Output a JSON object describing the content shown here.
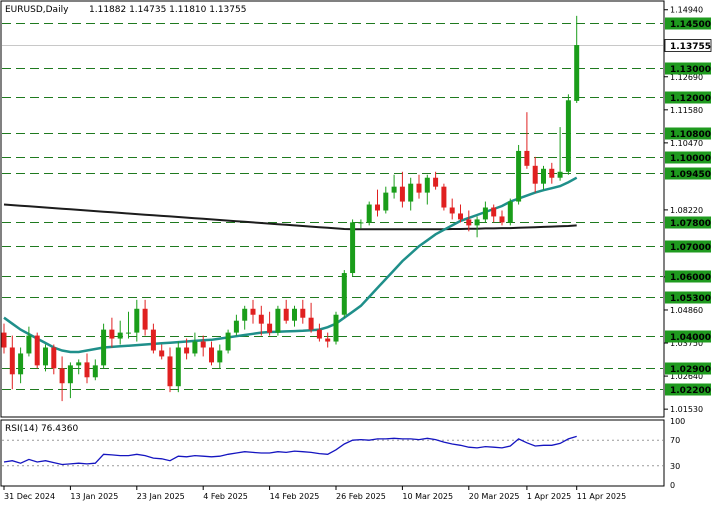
{
  "header": {
    "symbol": "EURUSD,Daily",
    "ohlc": "1.11882 1.14735 1.11810 1.13755"
  },
  "price_axis": {
    "ticks": [
      "1.14940",
      "1.12690",
      "1.11580",
      "1.10470",
      "1.08220",
      "1.05970",
      "1.04860",
      "1.03750",
      "1.02640",
      "1.01530"
    ]
  },
  "levels": [
    "1.14500",
    "1.13000",
    "1.12000",
    "1.10800",
    "1.10000",
    "1.09450",
    "1.07800",
    "1.07000",
    "1.06000",
    "1.05300",
    "1.04000",
    "1.02900",
    "1.02200"
  ],
  "current_price": "1.13755",
  "rsi": {
    "label": "RSI(14) 76.4360",
    "ticks": [
      "100",
      "70",
      "30",
      "0"
    ],
    "levels": [
      70,
      30
    ]
  },
  "x_axis": {
    "labels": [
      "31 Dec 2024",
      "13 Jan 2025",
      "23 Jan 2025",
      "4 Feb 2025",
      "14 Feb 2025",
      "26 Feb 2025",
      "10 Mar 2025",
      "20 Mar 2025",
      "1 Apr 2025",
      "11 Apr 2025"
    ]
  },
  "colors": {
    "bull": "#1a9d1a",
    "bear": "#e02020",
    "level_line": "#1f7a1f",
    "ma_fast": "#1f8f8a",
    "ma_slow": "#1c1c1c",
    "rsi_line": "#1515c0",
    "tag_fill": "#1f9a1f",
    "current_tag_fill": "#ffffff"
  },
  "chart_data": {
    "type": "candlestick",
    "ohlc": [
      [
        1.041,
        1.044,
        1.034,
        1.036
      ],
      [
        1.036,
        1.04,
        1.022,
        1.027
      ],
      [
        1.027,
        1.036,
        1.024,
        1.034
      ],
      [
        1.034,
        1.043,
        1.033,
        1.04
      ],
      [
        1.04,
        1.041,
        1.029,
        1.03
      ],
      [
        1.03,
        1.037,
        1.028,
        1.036
      ],
      [
        1.036,
        1.037,
        1.027,
        1.029
      ],
      [
        1.029,
        1.033,
        1.018,
        1.024
      ],
      [
        1.024,
        1.031,
        1.019,
        1.03
      ],
      [
        1.03,
        1.032,
        1.027,
        1.031
      ],
      [
        1.031,
        1.034,
        1.024,
        1.026
      ],
      [
        1.026,
        1.032,
        1.025,
        1.03
      ],
      [
        1.03,
        1.044,
        1.029,
        1.042
      ],
      [
        1.042,
        1.046,
        1.036,
        1.039
      ],
      [
        1.039,
        1.045,
        1.037,
        1.041
      ],
      [
        1.041,
        1.048,
        1.039,
        1.041
      ],
      [
        1.041,
        1.052,
        1.038,
        1.049
      ],
      [
        1.049,
        1.052,
        1.04,
        1.042
      ],
      [
        1.042,
        1.044,
        1.034,
        1.035
      ],
      [
        1.035,
        1.037,
        1.032,
        1.033
      ],
      [
        1.033,
        1.036,
        1.021,
        1.023
      ],
      [
        1.023,
        1.038,
        1.021,
        1.036
      ],
      [
        1.036,
        1.039,
        1.032,
        1.034
      ],
      [
        1.034,
        1.041,
        1.033,
        1.038
      ],
      [
        1.038,
        1.04,
        1.033,
        1.036
      ],
      [
        1.036,
        1.038,
        1.03,
        1.031
      ],
      [
        1.031,
        1.037,
        1.029,
        1.035
      ],
      [
        1.035,
        1.042,
        1.034,
        1.041
      ],
      [
        1.041,
        1.047,
        1.04,
        1.045
      ],
      [
        1.045,
        1.05,
        1.042,
        1.049
      ],
      [
        1.049,
        1.052,
        1.044,
        1.047
      ],
      [
        1.047,
        1.05,
        1.04,
        1.044
      ],
      [
        1.044,
        1.048,
        1.04,
        1.041
      ],
      [
        1.041,
        1.05,
        1.04,
        1.049
      ],
      [
        1.049,
        1.052,
        1.044,
        1.045
      ],
      [
        1.045,
        1.05,
        1.043,
        1.049
      ],
      [
        1.049,
        1.052,
        1.044,
        1.046
      ],
      [
        1.046,
        1.051,
        1.041,
        1.042
      ],
      [
        1.042,
        1.044,
        1.038,
        1.039
      ],
      [
        1.039,
        1.041,
        1.036,
        1.038
      ],
      [
        1.038,
        1.048,
        1.037,
        1.047
      ],
      [
        1.047,
        1.062,
        1.046,
        1.061
      ],
      [
        1.061,
        1.079,
        1.06,
        1.078
      ],
      [
        1.078,
        1.079,
        1.076,
        1.078
      ],
      [
        1.078,
        1.085,
        1.077,
        1.084
      ],
      [
        1.084,
        1.089,
        1.08,
        1.082
      ],
      [
        1.082,
        1.09,
        1.081,
        1.088
      ],
      [
        1.088,
        1.094,
        1.086,
        1.09
      ],
      [
        1.09,
        1.095,
        1.083,
        1.085
      ],
      [
        1.085,
        1.093,
        1.082,
        1.091
      ],
      [
        1.091,
        1.094,
        1.086,
        1.088
      ],
      [
        1.088,
        1.094,
        1.084,
        1.093
      ],
      [
        1.093,
        1.095,
        1.089,
        1.09
      ],
      [
        1.09,
        1.091,
        1.082,
        1.083
      ],
      [
        1.083,
        1.086,
        1.079,
        1.081
      ],
      [
        1.081,
        1.084,
        1.078,
        1.079
      ],
      [
        1.079,
        1.082,
        1.075,
        1.077
      ],
      [
        1.077,
        1.08,
        1.073,
        1.079
      ],
      [
        1.079,
        1.085,
        1.078,
        1.083
      ],
      [
        1.083,
        1.084,
        1.078,
        1.08
      ],
      [
        1.08,
        1.082,
        1.077,
        1.078
      ],
      [
        1.078,
        1.086,
        1.077,
        1.085
      ],
      [
        1.085,
        1.104,
        1.084,
        1.102
      ],
      [
        1.102,
        1.115,
        1.096,
        1.097
      ],
      [
        1.097,
        1.1,
        1.088,
        1.091
      ],
      [
        1.091,
        1.097,
        1.089,
        1.096
      ],
      [
        1.096,
        1.098,
        1.091,
        1.093
      ],
      [
        1.093,
        1.11,
        1.092,
        1.095
      ],
      [
        1.095,
        1.121,
        1.094,
        1.119
      ],
      [
        1.1188,
        1.14735,
        1.1181,
        1.13755
      ]
    ],
    "ma_fast": [
      1.046,
      1.044,
      1.042,
      1.0405,
      1.039,
      1.0375,
      1.036,
      1.035,
      1.0345,
      1.0345,
      1.035,
      1.0355,
      1.036,
      1.0362,
      1.0364,
      1.0366,
      1.0368,
      1.037,
      1.0372,
      1.0374,
      1.0376,
      1.0378,
      1.038,
      1.0382,
      1.0384,
      1.0386,
      1.039,
      1.0394,
      1.0398,
      1.0402,
      1.0406,
      1.041,
      1.0412,
      1.0413,
      1.0414,
      1.0415,
      1.0416,
      1.0418,
      1.042,
      1.0428,
      1.044,
      1.046,
      1.048,
      1.05,
      1.053,
      1.056,
      1.059,
      1.062,
      1.065,
      1.0675,
      1.07,
      1.072,
      1.074,
      1.0755,
      1.077,
      1.0785,
      1.0795,
      1.0805,
      1.0815,
      1.0825,
      1.0835,
      1.085,
      1.086,
      1.087,
      1.088,
      1.0888,
      1.0895,
      1.0902,
      1.0915,
      1.093
    ],
    "ma_slow": [
      1.084,
      1.0838,
      1.0836,
      1.0834,
      1.0832,
      1.083,
      1.0828,
      1.0826,
      1.0824,
      1.0822,
      1.082,
      1.0818,
      1.0816,
      1.0814,
      1.0812,
      1.081,
      1.0808,
      1.0806,
      1.0804,
      1.0802,
      1.08,
      1.0798,
      1.0796,
      1.0794,
      1.0792,
      1.079,
      1.0788,
      1.0786,
      1.0784,
      1.0782,
      1.078,
      1.0778,
      1.0776,
      1.0774,
      1.0772,
      1.077,
      1.0768,
      1.0766,
      1.0764,
      1.0762,
      1.076,
      1.0758,
      1.0757,
      1.0757,
      1.0757,
      1.0757,
      1.0757,
      1.0757,
      1.0757,
      1.0757,
      1.0757,
      1.0757,
      1.0757,
      1.0757,
      1.0758,
      1.0758,
      1.0759,
      1.0759,
      1.076,
      1.076,
      1.0761,
      1.0761,
      1.0762,
      1.0763,
      1.0764,
      1.0765,
      1.0766,
      1.0767,
      1.0768,
      1.077
    ],
    "rsi_values": [
      36,
      38,
      34,
      40,
      36,
      38,
      35,
      32,
      33,
      34,
      33,
      34,
      48,
      47,
      46,
      46,
      48,
      46,
      42,
      41,
      38,
      45,
      44,
      46,
      45,
      44,
      45,
      48,
      50,
      52,
      51,
      50,
      50,
      52,
      51,
      53,
      52,
      51,
      49,
      48,
      55,
      64,
      70,
      71,
      70,
      72,
      72,
      73,
      72,
      72,
      71,
      73,
      71,
      67,
      64,
      62,
      59,
      58,
      60,
      59,
      58,
      61,
      72,
      66,
      61,
      62,
      62,
      65,
      72,
      76
    ],
    "ylim": [
      1.013,
      1.152
    ],
    "rsi_ylim": [
      0,
      100
    ]
  }
}
